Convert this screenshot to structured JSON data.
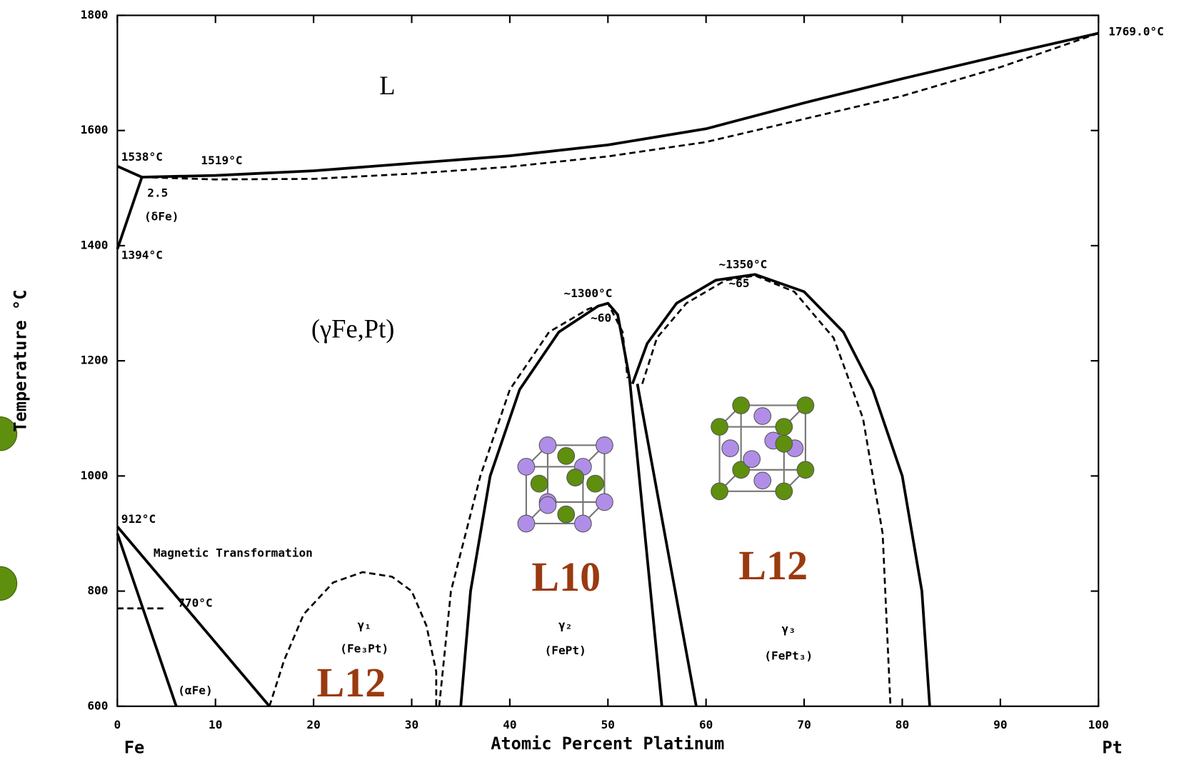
{
  "chart_data": {
    "type": "line",
    "x_label": "Atomic Percent Platinum",
    "y_label": "Temperature °C",
    "x_end_labels": [
      "Fe",
      "Pt"
    ],
    "xlim": [
      0,
      100
    ],
    "xticks": [
      0,
      10,
      20,
      30,
      40,
      50,
      60,
      70,
      80,
      90,
      100
    ],
    "ylim": [
      600,
      1800
    ],
    "yticks": [
      600,
      800,
      1000,
      1200,
      1400,
      1600,
      1800
    ],
    "color": "#000000",
    "series": [
      {
        "dash": false,
        "x": [
          0,
          2.5,
          10,
          20,
          30,
          40,
          50,
          60,
          70,
          80,
          90,
          100
        ],
        "values": [
          1538,
          1519,
          1522,
          1530,
          1543,
          1556,
          1575,
          1603,
          1648,
          1690,
          1730,
          1769
        ]
      },
      {
        "dash": true,
        "x": [
          2.5,
          10,
          20,
          30,
          40,
          50,
          60,
          70,
          80,
          90,
          100
        ],
        "values": [
          1519,
          1515,
          1516,
          1525,
          1537,
          1555,
          1580,
          1620,
          1660,
          1710,
          1769
        ]
      },
      {
        "dash": false,
        "x": [
          0,
          2.5
        ],
        "values": [
          1394,
          1519
        ]
      },
      {
        "dash": false,
        "x": [
          0,
          15.5
        ],
        "values": [
          912,
          600
        ]
      },
      {
        "dash": false,
        "x": [
          0,
          2,
          4,
          6
        ],
        "values": [
          900,
          800,
          700,
          600
        ]
      },
      {
        "dash": true,
        "x": [
          0,
          5
        ],
        "values": [
          770,
          770
        ]
      },
      {
        "dash": true,
        "x": [
          15.5,
          17,
          19,
          22,
          25,
          28,
          30,
          31.5,
          32.5,
          32.5
        ],
        "values": [
          600,
          680,
          760,
          815,
          833,
          825,
          800,
          740,
          660,
          600
        ]
      },
      {
        "dash": true,
        "x": [
          32.8,
          34,
          37,
          40,
          44,
          48,
          50,
          51.5,
          52
        ],
        "values": [
          600,
          800,
          1000,
          1150,
          1250,
          1290,
          1300,
          1250,
          1170
        ]
      },
      {
        "dash": false,
        "x": [
          35,
          36,
          38,
          41,
          45,
          49,
          50,
          51,
          52.2,
          55.5
        ],
        "values": [
          600,
          800,
          1000,
          1150,
          1250,
          1295,
          1300,
          1280,
          1170,
          600
        ]
      },
      {
        "dash": false,
        "x": [
          52.5,
          54,
          57,
          61,
          65,
          70,
          74,
          77,
          80,
          82,
          82.8
        ],
        "values": [
          1160,
          1230,
          1300,
          1340,
          1350,
          1320,
          1250,
          1150,
          1000,
          800,
          600
        ]
      },
      {
        "dash": false,
        "x": [
          53,
          59
        ],
        "values": [
          1160,
          600
        ]
      },
      {
        "dash": true,
        "x": [
          53.5,
          55,
          58,
          62,
          65,
          69,
          73,
          76,
          78,
          78.8
        ],
        "values": [
          1160,
          1240,
          1300,
          1340,
          1348,
          1320,
          1240,
          1100,
          900,
          600
        ]
      }
    ],
    "annotations": [
      "L",
      "(γFe,Pt)",
      "1538°C",
      "1519°C",
      "2.5",
      "(δFe)",
      "1394°C",
      "912°C",
      "Magnetic Transformation",
      "770°C",
      "(αFe)",
      "~1300°C",
      "~60",
      "~1350°C",
      "~65",
      "1769.0°C",
      "γ₁",
      "(Fe₃Pt)",
      "γ₂",
      "(FePt)",
      "γ₃",
      "(FePt₃)"
    ],
    "structure_labels": [
      "L12",
      "L10",
      "L12"
    ]
  }
}
